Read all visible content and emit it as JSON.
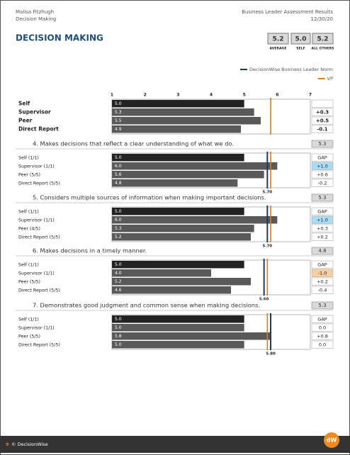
{
  "header": {
    "name": "Malisa Fitzhugh",
    "section": "Decision Making",
    "report": "Business Leader Assessment Results",
    "date": "12/30/20"
  },
  "title": "DECISION MAKING",
  "scores": [
    {
      "value": "5.2",
      "label": "AVERAGE"
    },
    {
      "value": "5.0",
      "label": "SELF"
    },
    {
      "value": "5.2",
      "label": "ALL OTHERS"
    }
  ],
  "legend": [
    {
      "name": "DecisionWise Business Leader Norm",
      "color": "#1f3a5f"
    },
    {
      "name": "VP",
      "color": "#e07b10"
    }
  ],
  "scale": {
    "xlim": [
      1,
      7
    ],
    "xticks": [
      1,
      2,
      3,
      4,
      5,
      6,
      7
    ]
  },
  "gap_header": "GAP",
  "summary": {
    "vp": 5.8,
    "rows": [
      {
        "label": "Self",
        "value": "5.0"
      },
      {
        "label": "Supervisor",
        "value": "5.3",
        "gap": "+0.3"
      },
      {
        "label": "Peer",
        "value": "5.5",
        "gap": "+0.5"
      },
      {
        "label": "Direct Report",
        "value": "4.9",
        "gap": "-0.1"
      }
    ]
  },
  "items": [
    {
      "text": "4. Makes decisions that reflect a clear understanding of what we do.",
      "score": "5.3",
      "norm": "5.70",
      "vp": 5.8,
      "rows": [
        {
          "label": "Self (1/1)",
          "value": "5.0",
          "gap": "GAP"
        },
        {
          "label": "Supervisor (1/1)",
          "value": "6.0",
          "gap": "+1.0",
          "highlight": "#a9dcf5"
        },
        {
          "label": "Peer (5/5)",
          "value": "5.6",
          "gap": "+0.6"
        },
        {
          "label": "Direct Report (5/5)",
          "value": "4.8",
          "gap": "-0.2"
        }
      ]
    },
    {
      "text": "5. Considers multiple sources of information when making important decisions.",
      "score": "5.3",
      "norm": "5.70",
      "vp": 5.8,
      "rows": [
        {
          "label": "Self (1/1)",
          "value": "5.0",
          "gap": "GAP"
        },
        {
          "label": "Supervisor (1/1)",
          "value": "6.0",
          "gap": "+1.0",
          "highlight": "#a9dcf5"
        },
        {
          "label": "Peer (4/5)",
          "value": "5.3",
          "gap": "+0.3"
        },
        {
          "label": "Direct Report (5/5)",
          "value": "5.2",
          "gap": "+0.2"
        }
      ]
    },
    {
      "text": "6. Makes decisions in a timely manner.",
      "score": "4.8",
      "norm": "5.60",
      "vp": 5.7,
      "rows": [
        {
          "label": "Self (1/1)",
          "value": "5.0",
          "gap": "GAP"
        },
        {
          "label": "Supervisor (1/1)",
          "value": "4.0",
          "gap": "-1.0",
          "highlight": "#f8cfa0"
        },
        {
          "label": "Peer (5/5)",
          "value": "5.2",
          "gap": "+0.2"
        },
        {
          "label": "Direct Report (5/5)",
          "value": "4.6",
          "gap": "-0.4"
        }
      ]
    },
    {
      "text": "7. Demonstrates good judgment and common sense when making decisions.",
      "score": "5.3",
      "norm": "5.80",
      "vp": 5.7,
      "rows": [
        {
          "label": "Self (1/1)",
          "value": "5.0",
          "gap": "GAP"
        },
        {
          "label": "Supervisor (1/1)",
          "value": "5.0",
          "gap": "0.0"
        },
        {
          "label": "Peer (5/5)",
          "value": "5.8",
          "gap": "+0.8"
        },
        {
          "label": "Direct Report (5/5)",
          "value": "5.0",
          "gap": "0.0"
        }
      ]
    }
  ],
  "footer": {
    "page": "9",
    "copyright": "© DecisionWise",
    "logo": "dW"
  }
}
